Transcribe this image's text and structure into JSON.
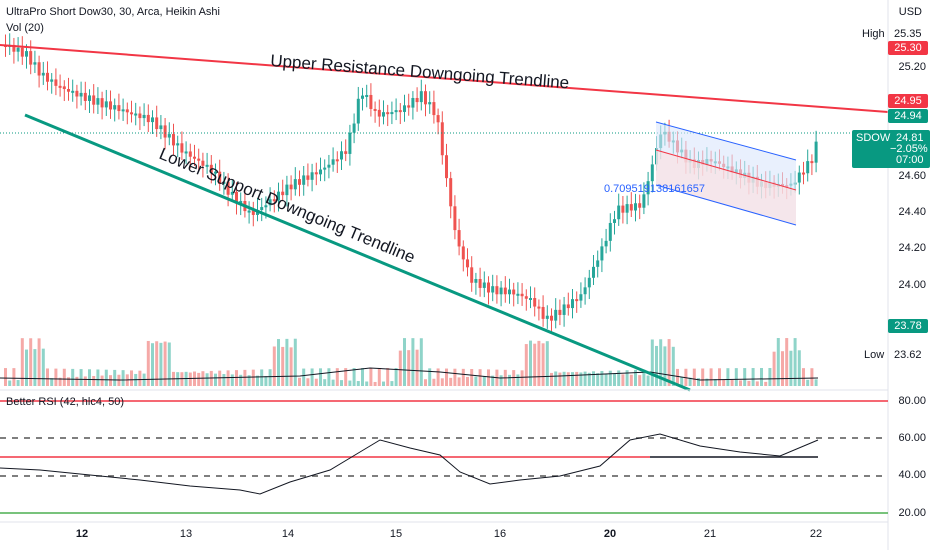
{
  "header": {
    "title": "UltraPro Short Dow30, 30, Arca, Heikin Ashi",
    "volume_label": "Vol (20)"
  },
  "currency": "USD",
  "price_ticks": [
    "25.20",
    "24.60",
    "24.40",
    "24.20",
    "24.00"
  ],
  "time_labels": [
    "12",
    "13",
    "14",
    "15",
    "16",
    "20",
    "21",
    "22"
  ],
  "annotations": {
    "upper": "Upper Resistance Downgoing Trendline",
    "lower": "Lower Support Downgoing Trendline",
    "channel_value": "0.709519138161657"
  },
  "badges": {
    "high_label": "High",
    "high_value": "25.35",
    "upper_line_1": "25.30",
    "upper_line_2": "24.95",
    "last_price": "24.94",
    "support": "23.78",
    "low_label": "Low",
    "low_value": "23.62"
  },
  "ticker": {
    "symbol": "SDOW",
    "price": "24.81",
    "change": "−2.05%",
    "countdown": "07:00"
  },
  "rsi": {
    "label": "Better RSI (42, hlc4, 50)",
    "levels": [
      "80.00",
      "60.00",
      "40.00",
      "20.00"
    ]
  },
  "colors": {
    "up": "#26a69a",
    "down": "#ef5350",
    "resistance": "#f23645",
    "support": "#089981",
    "rsi_line": "#131722"
  }
}
